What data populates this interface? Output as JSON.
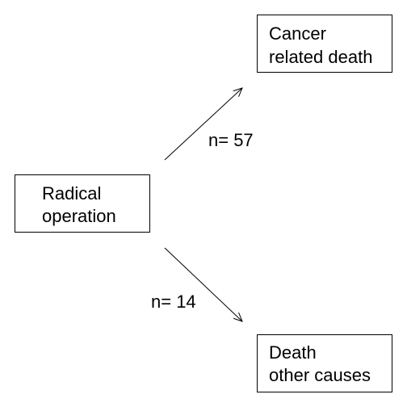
{
  "nodes": {
    "source": {
      "line1": "Radical",
      "line2": "operation"
    },
    "cancer": {
      "line1": "Cancer",
      "line2": "related death"
    },
    "other": {
      "line1": "Death",
      "line2": "other causes"
    }
  },
  "edges": {
    "to_cancer": {
      "label": "n= 57"
    },
    "to_other": {
      "label": "n= 14"
    }
  },
  "colors": {
    "stroke": "#000000",
    "background": "#ffffff"
  }
}
